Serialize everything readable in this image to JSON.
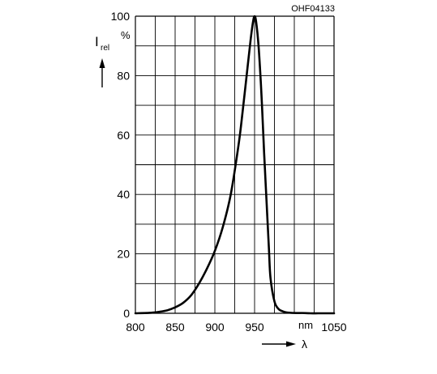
{
  "chart_data": {
    "type": "line",
    "code": "OHF04133",
    "ylabel": {
      "symbol": "I",
      "subscript": "rel",
      "unit": "%"
    },
    "xlabel": {
      "symbol": "λ",
      "unit": "nm"
    },
    "xlim": [
      800,
      1050
    ],
    "ylim": [
      0,
      100
    ],
    "x_ticks": [
      800,
      850,
      900,
      950,
      1050
    ],
    "y_ticks": [
      0,
      20,
      40,
      60,
      80,
      100
    ],
    "x_grid_step": 25,
    "y_grid_step": 10,
    "grid": true,
    "series": [
      {
        "x": [
          800,
          820,
          830,
          840,
          850,
          860,
          870,
          880,
          890,
          900,
          910,
          920,
          930,
          935,
          940,
          945,
          948,
          950,
          952,
          955,
          958,
          960,
          962,
          965,
          968,
          970,
          975,
          980,
          985,
          990,
          1000,
          1010,
          1020,
          1030,
          1040,
          1050
        ],
        "y": [
          0,
          0.2,
          0.5,
          1,
          2,
          3.5,
          6,
          10,
          15,
          21,
          29,
          40,
          57,
          68,
          80,
          92,
          98,
          100,
          98,
          90,
          77,
          66,
          54,
          38,
          22,
          12,
          4,
          1.5,
          0.7,
          0.3,
          0.1,
          0.1,
          0,
          0,
          0,
          0
        ]
      }
    ],
    "colors": {
      "line": "#000000",
      "grid": "#000000"
    }
  }
}
